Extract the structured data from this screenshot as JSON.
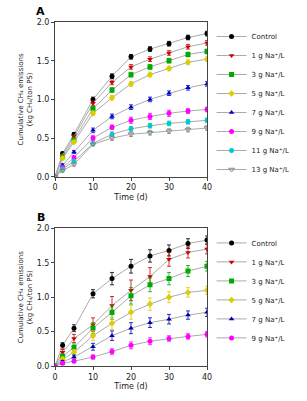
{
  "chart_data": [
    {
      "type": "line",
      "title": "A",
      "xlabel": "Time (d)",
      "ylabel": "Cumulative CH₄ emissions (kg CH₄/ton PS)",
      "x": [
        0,
        2,
        5,
        10,
        15,
        20,
        25,
        30,
        35,
        40
      ],
      "xlim": [
        0,
        40
      ],
      "xticks": [
        0,
        10,
        20,
        30,
        40
      ],
      "ylim": [
        0.0,
        2.0
      ],
      "yticks": [
        {
          "value": 0.0,
          "label": "0.0"
        },
        0.5,
        {
          "value": 1.0,
          "label": "1.0"
        },
        1.5,
        {
          "value": 2.0,
          "label": "2.0"
        }
      ],
      "grid": false,
      "legend": "right",
      "color": "#aaaaaa",
      "series": [
        {
          "name": "Control",
          "color": "#000000",
          "marker": "circle",
          "values": [
            0.0,
            0.3,
            0.55,
            1.0,
            1.3,
            1.55,
            1.65,
            1.72,
            1.8,
            1.85
          ],
          "errors": [
            0,
            0.02,
            0.02,
            0.03,
            0.03,
            0.03,
            0.03,
            0.03,
            0.03,
            0.03
          ]
        },
        {
          "name": "1 g Na⁺/L",
          "color": "#cc0000",
          "marker": "triangle-down",
          "values": [
            0.0,
            0.28,
            0.52,
            0.95,
            1.22,
            1.42,
            1.52,
            1.6,
            1.68,
            1.73
          ],
          "errors": [
            0,
            0.02,
            0.02,
            0.03,
            0.03,
            0.03,
            0.03,
            0.03,
            0.03,
            0.03
          ]
        },
        {
          "name": "3 g Na⁺/L",
          "color": "#00aa00",
          "marker": "square",
          "values": [
            0.0,
            0.26,
            0.48,
            0.88,
            1.12,
            1.32,
            1.42,
            1.5,
            1.58,
            1.62
          ],
          "errors": [
            0,
            0.02,
            0.02,
            0.03,
            0.03,
            0.03,
            0.03,
            0.03,
            0.03,
            0.03
          ]
        },
        {
          "name": "5 g Na⁺/L",
          "color": "#ddcc00",
          "marker": "diamond",
          "values": [
            0.0,
            0.24,
            0.45,
            0.82,
            1.02,
            1.2,
            1.32,
            1.4,
            1.48,
            1.52
          ],
          "errors": [
            0,
            0.02,
            0.02,
            0.03,
            0.03,
            0.03,
            0.03,
            0.03,
            0.03,
            0.03
          ]
        },
        {
          "name": "7 g Na⁺/L",
          "color": "#0000cc",
          "marker": "triangle-up",
          "values": [
            0.0,
            0.15,
            0.32,
            0.6,
            0.78,
            0.9,
            1.0,
            1.08,
            1.15,
            1.2
          ],
          "errors": [
            0,
            0.02,
            0.02,
            0.03,
            0.03,
            0.03,
            0.03,
            0.03,
            0.03,
            0.03
          ]
        },
        {
          "name": "9 g Na⁺/L",
          "color": "#ff00ff",
          "marker": "circle",
          "values": [
            0.0,
            0.12,
            0.25,
            0.5,
            0.64,
            0.73,
            0.78,
            0.82,
            0.85,
            0.87
          ],
          "errors": [
            0,
            0.02,
            0.02,
            0.03,
            0.03,
            0.04,
            0.04,
            0.04,
            0.03,
            0.03
          ]
        },
        {
          "name": "11 g Na⁺/L",
          "color": "#00cccc",
          "marker": "circle",
          "values": [
            0.0,
            0.1,
            0.2,
            0.43,
            0.55,
            0.62,
            0.66,
            0.69,
            0.71,
            0.73
          ],
          "errors": [
            0,
            0.02,
            0.02,
            0.02,
            0.03,
            0.03,
            0.03,
            0.03,
            0.03,
            0.03
          ]
        },
        {
          "name": "13 g Na⁺/L",
          "color": "#888888",
          "marker": "triangle-down-open",
          "values": [
            0.0,
            0.08,
            0.16,
            0.42,
            0.5,
            0.55,
            0.57,
            0.59,
            0.61,
            0.63
          ],
          "errors": [
            0,
            0.02,
            0.02,
            0.02,
            0.03,
            0.03,
            0.03,
            0.03,
            0.03,
            0.03
          ]
        }
      ]
    },
    {
      "type": "line",
      "title": "B",
      "xlabel": "Time (d)",
      "ylabel": "Cumulative CH₄ emissions (kg CH₄/ton PS)",
      "x": [
        0,
        2,
        5,
        10,
        15,
        20,
        25,
        30,
        35,
        40
      ],
      "xlim": [
        0,
        40
      ],
      "xticks": [
        0,
        10,
        20,
        30,
        40
      ],
      "ylim": [
        0.0,
        2.0
      ],
      "yticks": [
        {
          "value": 0.0,
          "label": "0.0"
        },
        0.5,
        {
          "value": 1.0,
          "label": "1.0"
        },
        1.5,
        {
          "value": 2.0,
          "label": "2.0"
        }
      ],
      "grid": false,
      "legend": "right",
      "color": "#aaaaaa",
      "series": [
        {
          "name": "Control",
          "color": "#000000",
          "marker": "circle",
          "values": [
            0.0,
            0.3,
            0.55,
            1.05,
            1.27,
            1.45,
            1.6,
            1.68,
            1.78,
            1.83
          ],
          "errors": [
            0,
            0.04,
            0.05,
            0.06,
            0.09,
            0.1,
            0.09,
            0.08,
            0.07,
            0.06
          ]
        },
        {
          "name": "1 g Na⁺/L",
          "color": "#cc0000",
          "marker": "triangle-down",
          "values": [
            0.0,
            0.2,
            0.4,
            0.6,
            0.88,
            1.1,
            1.3,
            1.55,
            1.65,
            1.7
          ],
          "errors": [
            0,
            0.04,
            0.06,
            0.1,
            0.13,
            0.15,
            0.13,
            0.1,
            0.08,
            0.07
          ]
        },
        {
          "name": "3 g Na⁺/L",
          "color": "#00aa00",
          "marker": "square",
          "values": [
            0.0,
            0.14,
            0.27,
            0.55,
            0.78,
            1.02,
            1.18,
            1.27,
            1.38,
            1.45
          ],
          "errors": [
            0,
            0.03,
            0.05,
            0.08,
            0.1,
            0.12,
            0.1,
            0.09,
            0.08,
            0.07
          ]
        },
        {
          "name": "5 g Na⁺/L",
          "color": "#ddcc00",
          "marker": "diamond",
          "values": [
            0.0,
            0.1,
            0.2,
            0.44,
            0.62,
            0.78,
            0.9,
            1.0,
            1.07,
            1.1
          ],
          "errors": [
            0,
            0.03,
            0.04,
            0.07,
            0.09,
            0.1,
            0.09,
            0.08,
            0.07,
            0.06
          ]
        },
        {
          "name": "7 g Na⁺/L",
          "color": "#0000aa",
          "marker": "triangle-up",
          "values": [
            0.0,
            0.06,
            0.13,
            0.28,
            0.44,
            0.55,
            0.63,
            0.68,
            0.74,
            0.78
          ],
          "errors": [
            0,
            0.02,
            0.03,
            0.05,
            0.07,
            0.08,
            0.07,
            0.07,
            0.06,
            0.06
          ]
        },
        {
          "name": "9 g Na⁺/L",
          "color": "#ff00ff",
          "marker": "circle",
          "values": [
            0.0,
            0.04,
            0.07,
            0.13,
            0.21,
            0.3,
            0.36,
            0.4,
            0.43,
            0.46
          ],
          "errors": [
            0,
            0.01,
            0.02,
            0.03,
            0.04,
            0.05,
            0.05,
            0.04,
            0.04,
            0.04
          ]
        }
      ]
    }
  ]
}
